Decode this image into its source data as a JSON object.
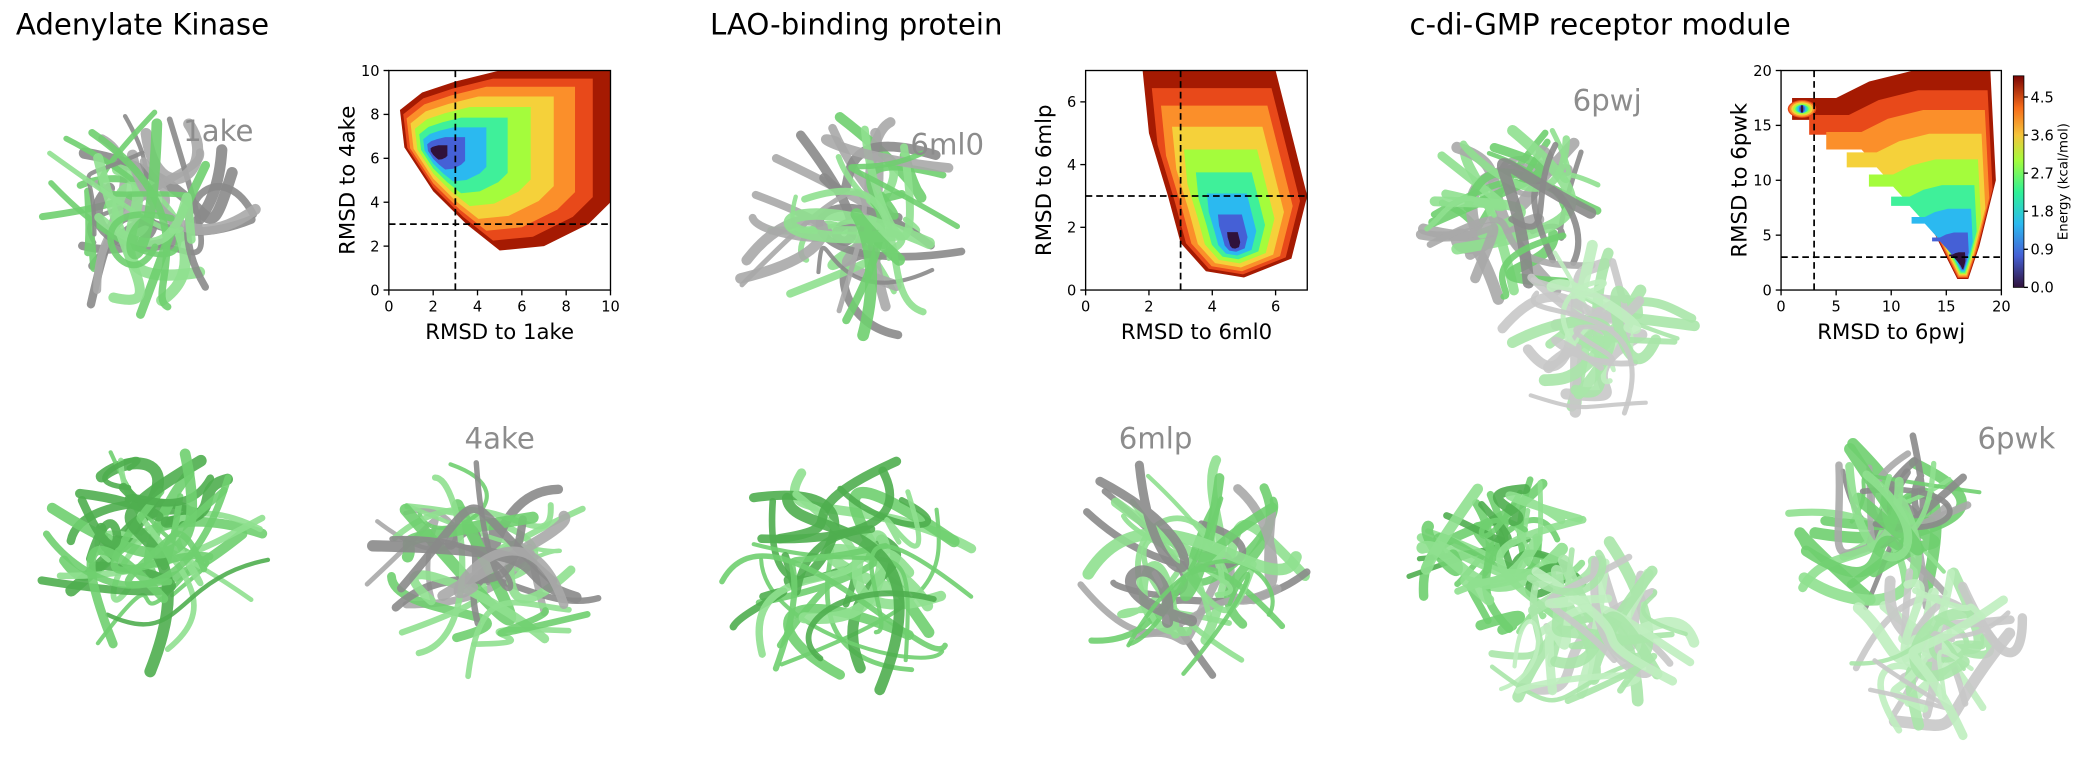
{
  "titles": [
    "Adenylate Kinase",
    "LAO-binding protein",
    "c-di-GMP receptor  module"
  ],
  "structure_labels": [
    "1ake",
    "4ake",
    "6ml0",
    "6mlp",
    "6pwj",
    "6pwk"
  ],
  "plots": [
    {
      "type": "contour",
      "xlabel": "RMSD to 1ake",
      "ylabel": "RMSD to 4ake",
      "xlim": [
        0,
        10
      ],
      "ylim": [
        0,
        10
      ],
      "xticks": [
        0,
        2,
        4,
        6,
        8,
        10
      ],
      "yticks": [
        0,
        2,
        4,
        6,
        8,
        10
      ],
      "cutoff_x": 3,
      "cutoff_y": 3
    },
    {
      "type": "contour",
      "xlabel": "RMSD to 6ml0",
      "ylabel": "RMSD to 6mlp",
      "xlim": [
        0,
        7
      ],
      "ylim": [
        0,
        7
      ],
      "xticks": [
        0,
        2,
        4,
        6
      ],
      "yticks": [
        0,
        2,
        4,
        6
      ],
      "cutoff_x": 3,
      "cutoff_y": 3
    },
    {
      "type": "contour",
      "xlabel": "RMSD to 6pwj",
      "ylabel": "RMSD to 6pwk",
      "xlim": [
        0,
        20
      ],
      "ylim": [
        0,
        20
      ],
      "xticks": [
        0,
        5,
        10,
        15,
        20
      ],
      "yticks": [
        0,
        5,
        10,
        15,
        20
      ],
      "cutoff_x": 3,
      "cutoff_y": 3
    }
  ],
  "colorbar": {
    "label": "Energy (kcal/mol)",
    "lim": [
      0,
      5
    ],
    "ticks": [
      {
        "value": 0,
        "label": "0.0"
      },
      {
        "value": 0.9,
        "label": "0.9"
      },
      {
        "value": 1.8,
        "label": "1.8"
      },
      {
        "value": 2.7,
        "label": "2.7"
      },
      {
        "value": 3.6,
        "label": "3.6"
      },
      {
        "value": 4.5,
        "label": "4.5"
      }
    ]
  }
}
